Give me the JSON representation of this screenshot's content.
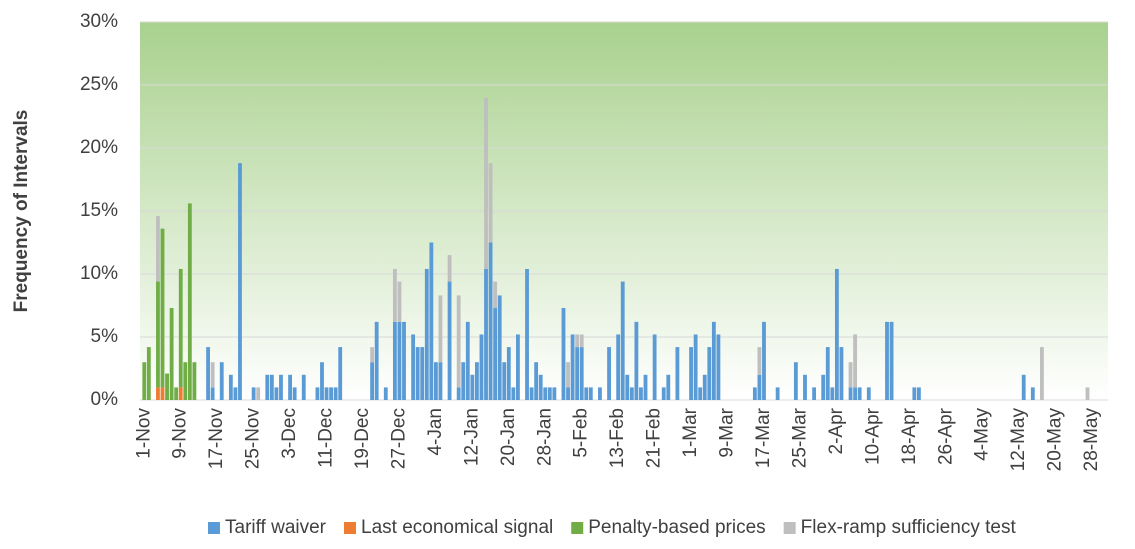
{
  "chart_data": {
    "type": "stacked-bar",
    "ylabel": "Frequency of Intervals",
    "ylim": [
      0,
      30
    ],
    "yticks": [
      {
        "value": 0,
        "label": "0%"
      },
      {
        "value": 5,
        "label": "5%"
      },
      {
        "value": 10,
        "label": "10%"
      },
      {
        "value": 15,
        "label": "15%"
      },
      {
        "value": 20,
        "label": "20%"
      },
      {
        "value": 25,
        "label": "25%"
      },
      {
        "value": 30,
        "label": "30%"
      }
    ],
    "grid": true,
    "legend": "bottom",
    "categories": [
      "1-Nov",
      null,
      null,
      null,
      null,
      null,
      null,
      null,
      "9-Nov",
      null,
      null,
      null,
      null,
      null,
      null,
      null,
      "17-Nov",
      null,
      null,
      null,
      null,
      null,
      null,
      null,
      "25-Nov",
      null,
      null,
      null,
      null,
      null,
      null,
      null,
      "3-Dec",
      null,
      null,
      null,
      null,
      null,
      null,
      null,
      "11-Dec",
      null,
      null,
      null,
      null,
      null,
      null,
      null,
      "19-Dec",
      null,
      null,
      null,
      null,
      null,
      null,
      null,
      "27-Dec",
      null,
      null,
      null,
      null,
      null,
      null,
      null,
      "4-Jan",
      null,
      null,
      null,
      null,
      null,
      null,
      null,
      "12-Jan",
      null,
      null,
      null,
      null,
      null,
      null,
      null,
      "20-Jan",
      null,
      null,
      null,
      null,
      null,
      null,
      null,
      "28-Jan",
      null,
      null,
      null,
      null,
      null,
      null,
      null,
      "5-Feb",
      null,
      null,
      null,
      null,
      null,
      null,
      null,
      "13-Feb",
      null,
      null,
      null,
      null,
      null,
      null,
      null,
      "21-Feb",
      null,
      null,
      null,
      null,
      null,
      null,
      null,
      "1-Mar",
      null,
      null,
      null,
      null,
      null,
      null,
      null,
      "9-Mar",
      null,
      null,
      null,
      null,
      null,
      null,
      null,
      "17-Mar",
      null,
      null,
      null,
      null,
      null,
      null,
      null,
      "25-Mar",
      null,
      null,
      null,
      null,
      null,
      null,
      null,
      "2-Apr",
      null,
      null,
      null,
      null,
      null,
      null,
      null,
      "10-Apr",
      null,
      null,
      null,
      null,
      null,
      null,
      null,
      "18-Apr",
      null,
      null,
      null,
      null,
      null,
      null,
      null,
      "26-Apr",
      null,
      null,
      null,
      null,
      null,
      null,
      null,
      "4-May",
      null,
      null,
      null,
      null,
      null,
      null,
      null,
      "12-May",
      null,
      null,
      null,
      null,
      null,
      null,
      null,
      "20-May",
      null,
      null,
      null,
      null,
      null,
      null,
      null,
      "28-May",
      null,
      null,
      null
    ],
    "series": [
      {
        "name": "Tariff waiver",
        "color": "#5b9bd5",
        "values": [
          0,
          0,
          0,
          0,
          0,
          0,
          0,
          0,
          0,
          0,
          0,
          0,
          0,
          0,
          4.2,
          1,
          0,
          3,
          0,
          2,
          1,
          18.8,
          0,
          0,
          1,
          0,
          0,
          2,
          2,
          1,
          2,
          0,
          2,
          1,
          0,
          2,
          0,
          0,
          1,
          3,
          1,
          1,
          1,
          4.2,
          0,
          0,
          0,
          0,
          0,
          0,
          3,
          6.2,
          0,
          1,
          0,
          6.2,
          6.2,
          6.2,
          0,
          5.2,
          4.2,
          4.2,
          10.4,
          12.5,
          3,
          3,
          0,
          9.4,
          0,
          1,
          3,
          6.2,
          2,
          3,
          5.2,
          10.4,
          12.5,
          7.3,
          8.3,
          3,
          4.2,
          1,
          5.2,
          0,
          10.4,
          1,
          3,
          2,
          1,
          1,
          1,
          0,
          7.3,
          1,
          5.2,
          4.2,
          4.2,
          1,
          1,
          0,
          1,
          0,
          4.2,
          0,
          5.2,
          9.4,
          2,
          1,
          6.2,
          1,
          2,
          0,
          5.2,
          0,
          1,
          2,
          0,
          4.2,
          0,
          0,
          4.2,
          5.2,
          1,
          2,
          4.2,
          6.2,
          5.2,
          0,
          0,
          0,
          0,
          0,
          0,
          0,
          1,
          2,
          6.2,
          0,
          0,
          1,
          0,
          0,
          0,
          3,
          0,
          2,
          0,
          1,
          0,
          2,
          4.2,
          1,
          10.4,
          4.2,
          0,
          1,
          1,
          1,
          0,
          1,
          0,
          0,
          0,
          6.2,
          6.2,
          0,
          0,
          0,
          0,
          1,
          1,
          0,
          0,
          0,
          0,
          0,
          0,
          0,
          0,
          0,
          0,
          0,
          0,
          0,
          0,
          0,
          0,
          0,
          0,
          0,
          0,
          0,
          0,
          2,
          0,
          1,
          0,
          0,
          0,
          0,
          0,
          0,
          0,
          0,
          0,
          0,
          0,
          0,
          0,
          0,
          0,
          0
        ]
      },
      {
        "name": "Last economical signal",
        "color": "#ed7d31",
        "values": [
          0,
          0,
          0,
          1,
          1,
          0,
          0,
          0,
          1,
          0,
          0,
          0,
          0,
          0,
          0,
          0,
          0,
          0,
          0,
          0,
          0,
          0,
          0,
          0,
          0,
          0,
          0,
          0,
          0,
          0,
          0,
          0,
          0,
          0,
          0,
          0,
          0,
          0,
          0,
          0,
          0,
          0,
          0,
          0,
          0,
          0,
          0,
          0,
          0,
          0,
          0,
          0,
          0,
          0,
          0,
          0,
          0,
          0,
          0,
          0,
          0,
          0,
          0,
          0,
          0,
          0,
          0,
          0,
          0,
          0,
          0,
          0,
          0,
          0,
          0,
          0,
          0,
          0,
          0,
          0,
          0,
          0,
          0,
          0,
          0,
          0,
          0,
          0,
          0,
          0,
          0,
          0,
          0,
          0,
          0,
          0,
          0,
          0,
          0,
          0,
          0,
          0,
          0,
          0,
          0,
          0,
          0,
          0,
          0,
          0,
          0,
          0,
          0,
          0,
          0,
          0,
          0,
          0,
          0,
          0,
          0,
          0,
          0,
          0,
          0,
          0,
          0,
          0,
          0,
          0,
          0,
          0,
          0,
          0,
          0,
          0,
          0,
          0,
          0,
          0,
          0,
          0,
          0,
          0,
          0,
          0,
          0,
          0,
          0,
          0,
          0,
          0,
          0,
          0,
          0,
          0,
          0,
          0,
          0,
          0,
          0,
          0,
          0,
          0,
          0,
          0,
          0,
          0,
          0,
          0,
          0,
          0,
          0,
          0,
          0,
          0,
          0,
          0,
          0,
          0,
          0,
          0,
          0,
          0,
          0,
          0,
          0,
          0,
          0,
          0,
          0,
          0,
          0,
          0,
          0,
          0,
          0,
          0,
          0,
          0,
          0,
          0,
          0,
          0,
          0,
          0,
          0,
          0,
          0,
          0,
          0,
          0
        ]
      },
      {
        "name": "Penalty-based prices",
        "color": "#70ad47",
        "values": [
          3,
          4.2,
          0,
          8.4,
          12.6,
          2.1,
          7.3,
          1,
          9.4,
          3,
          15.6,
          3,
          0,
          0,
          0,
          0,
          0,
          0,
          0,
          0,
          0,
          0,
          0,
          0,
          0,
          0,
          0,
          0,
          0,
          0,
          0,
          0,
          0,
          0,
          0,
          0,
          0,
          0,
          0,
          0,
          0,
          0,
          0,
          0,
          0,
          0,
          0,
          0,
          0,
          0,
          0,
          0,
          0,
          0,
          0,
          0,
          0,
          0,
          0,
          0,
          0,
          0,
          0,
          0,
          0,
          0,
          0,
          0,
          0,
          0,
          0,
          0,
          0,
          0,
          0,
          0,
          0,
          0,
          0,
          0,
          0,
          0,
          0,
          0,
          0,
          0,
          0,
          0,
          0,
          0,
          0,
          0,
          0,
          0,
          0,
          0,
          0,
          0,
          0,
          0,
          0,
          0,
          0,
          0,
          0,
          0,
          0,
          0,
          0,
          0,
          0,
          0,
          0,
          0,
          0,
          0,
          0,
          0,
          0,
          0,
          0,
          0,
          0,
          0,
          0,
          0,
          0,
          0,
          0,
          0,
          0,
          0,
          0,
          0,
          0,
          0,
          0,
          0,
          0,
          0,
          0,
          0,
          0,
          0,
          0,
          0,
          0,
          0,
          0,
          0,
          0,
          0,
          0,
          0,
          0,
          0,
          0,
          0,
          0,
          0,
          0,
          0,
          0,
          0,
          0,
          0,
          0,
          0,
          0,
          0,
          0,
          0,
          0,
          0,
          0,
          0,
          0,
          0,
          0,
          0,
          0,
          0,
          0,
          0,
          0,
          0,
          0,
          0,
          0,
          0,
          0,
          0,
          0,
          0,
          0,
          0,
          0,
          0,
          0,
          0,
          0,
          0,
          0,
          0,
          0,
          0,
          0,
          0,
          0,
          0,
          0,
          0
        ]
      },
      {
        "name": "Flex-ramp sufficiency test",
        "color": "#bfbfbf",
        "values": [
          0,
          0,
          0,
          5.2,
          0,
          0,
          0,
          0,
          0,
          0,
          0,
          0,
          0,
          0,
          0,
          2,
          0,
          0,
          0,
          0,
          0,
          0,
          0,
          0,
          0,
          1,
          0,
          0,
          0,
          0,
          0,
          0,
          0,
          0,
          0,
          0,
          0,
          0,
          0,
          0,
          0,
          0,
          0,
          0,
          0,
          0,
          0,
          0,
          0,
          0,
          1.2,
          0,
          0,
          0,
          0,
          4.2,
          3.2,
          0,
          0,
          0,
          0,
          0,
          0,
          0,
          0,
          5.3,
          0,
          2.1,
          0,
          7.3,
          0,
          0,
          0,
          0,
          0,
          13.6,
          6.3,
          2.1,
          0,
          0,
          0,
          0,
          0,
          0,
          0,
          0,
          0,
          0,
          0,
          0,
          0,
          0,
          0,
          2,
          0,
          1,
          1,
          0,
          0,
          0,
          0,
          0,
          0,
          0,
          0,
          0,
          0,
          0,
          0,
          0,
          0,
          0,
          0,
          0,
          0,
          0,
          0,
          0,
          0,
          0,
          0,
          0,
          0,
          0,
          0,
          0,
          0,
          0,
          0,
          0,
          0,
          0,
          0,
          0,
          0,
          2.2,
          0,
          0,
          0,
          0,
          0,
          0,
          0,
          0,
          0,
          0,
          0,
          0,
          0,
          0,
          0,
          0,
          0,
          0,
          0,
          2,
          4.2,
          0,
          0,
          0,
          0,
          0,
          0,
          0,
          0,
          0,
          0,
          0,
          0,
          0,
          0,
          0,
          0,
          0,
          0,
          0,
          0,
          0,
          0,
          0,
          0,
          0,
          0,
          0,
          0,
          0,
          0,
          0,
          0,
          0,
          0,
          0,
          0,
          0,
          0,
          0,
          0,
          4.2,
          0,
          0,
          0,
          0,
          0,
          0,
          0,
          0,
          0,
          1,
          0,
          0,
          0,
          0
        ]
      }
    ]
  }
}
